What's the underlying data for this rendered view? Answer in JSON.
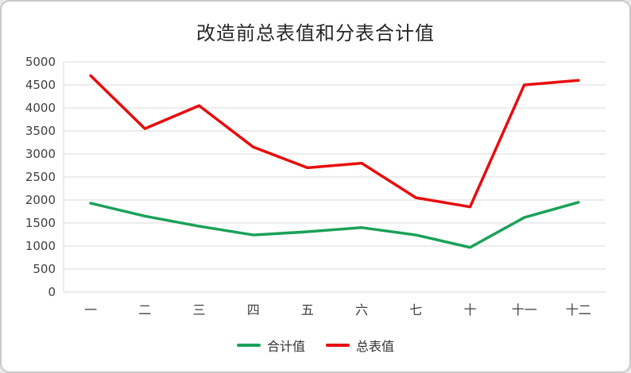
{
  "title": "改造前总表值和分表合计值",
  "colors": {
    "grid": "#d9d9d9",
    "axis_text": "#404040",
    "title_text": "#262626"
  },
  "chart_data": {
    "type": "line",
    "title": "改造前总表值和分表合计值",
    "categories": [
      "一",
      "二",
      "三",
      "四",
      "五",
      "六",
      "七",
      "十",
      "十一",
      "十二"
    ],
    "series": [
      {
        "name": "合计值",
        "color": "#1aa158",
        "values": [
          1930,
          1650,
          1430,
          1240,
          1310,
          1400,
          1240,
          970,
          1620,
          1950
        ]
      },
      {
        "name": "总表值",
        "color": "#e80c0c",
        "values": [
          4700,
          3550,
          4050,
          3150,
          2700,
          2800,
          2050,
          1850,
          4500,
          4600
        ]
      }
    ],
    "ylim": [
      0,
      5000
    ],
    "ytick_step": 500,
    "xlabel": "",
    "ylabel": "",
    "grid": true,
    "legend_position": "bottom"
  }
}
